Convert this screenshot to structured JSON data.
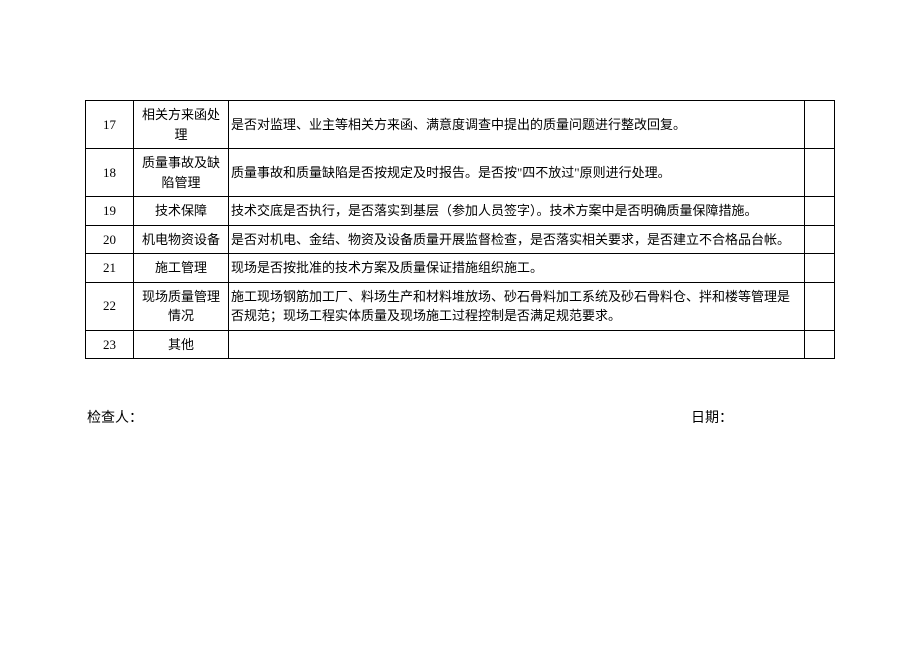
{
  "table": {
    "columns": {
      "num_width": 48,
      "category_width": 95,
      "empty_width": 30
    },
    "rows": [
      {
        "num": "17",
        "category": "相关方来函处理",
        "content": "是否对监理、业主等相关方来函、满意度调查中提出的质量问题进行整改回复。"
      },
      {
        "num": "18",
        "category": "质量事故及缺陷管理",
        "content": "质量事故和质量缺陷是否按规定及时报告。是否按\"四不放过\"原则进行处理。"
      },
      {
        "num": "19",
        "category": "技术保障",
        "content": "技术交底是否执行，是否落实到基层（参加人员签字）。技术方案中是否明确质量保障措施。"
      },
      {
        "num": "20",
        "category": "机电物资设备",
        "content": "是否对机电、金结、物资及设备质量开展监督检查，是否落实相关要求，是否建立不合格品台帐。"
      },
      {
        "num": "21",
        "category": "施工管理",
        "content": "现场是否按批准的技术方案及质量保证措施组织施工。"
      },
      {
        "num": "22",
        "category": "现场质量管理情况",
        "content": "施工现场钢筋加工厂、料场生产和材料堆放场、砂石骨料加工系统及砂石骨料仓、拌和楼等管理是否规范；现场工程实体质量及现场施工过程控制是否满足规范要求。"
      },
      {
        "num": "23",
        "category": "其他",
        "content": ""
      }
    ]
  },
  "footer": {
    "inspector_label": "检查人：",
    "date_label": "日期："
  },
  "styling": {
    "font_family": "SimSun",
    "font_size": 13,
    "border_color": "#000000",
    "background_color": "#ffffff",
    "text_color": "#000000"
  }
}
